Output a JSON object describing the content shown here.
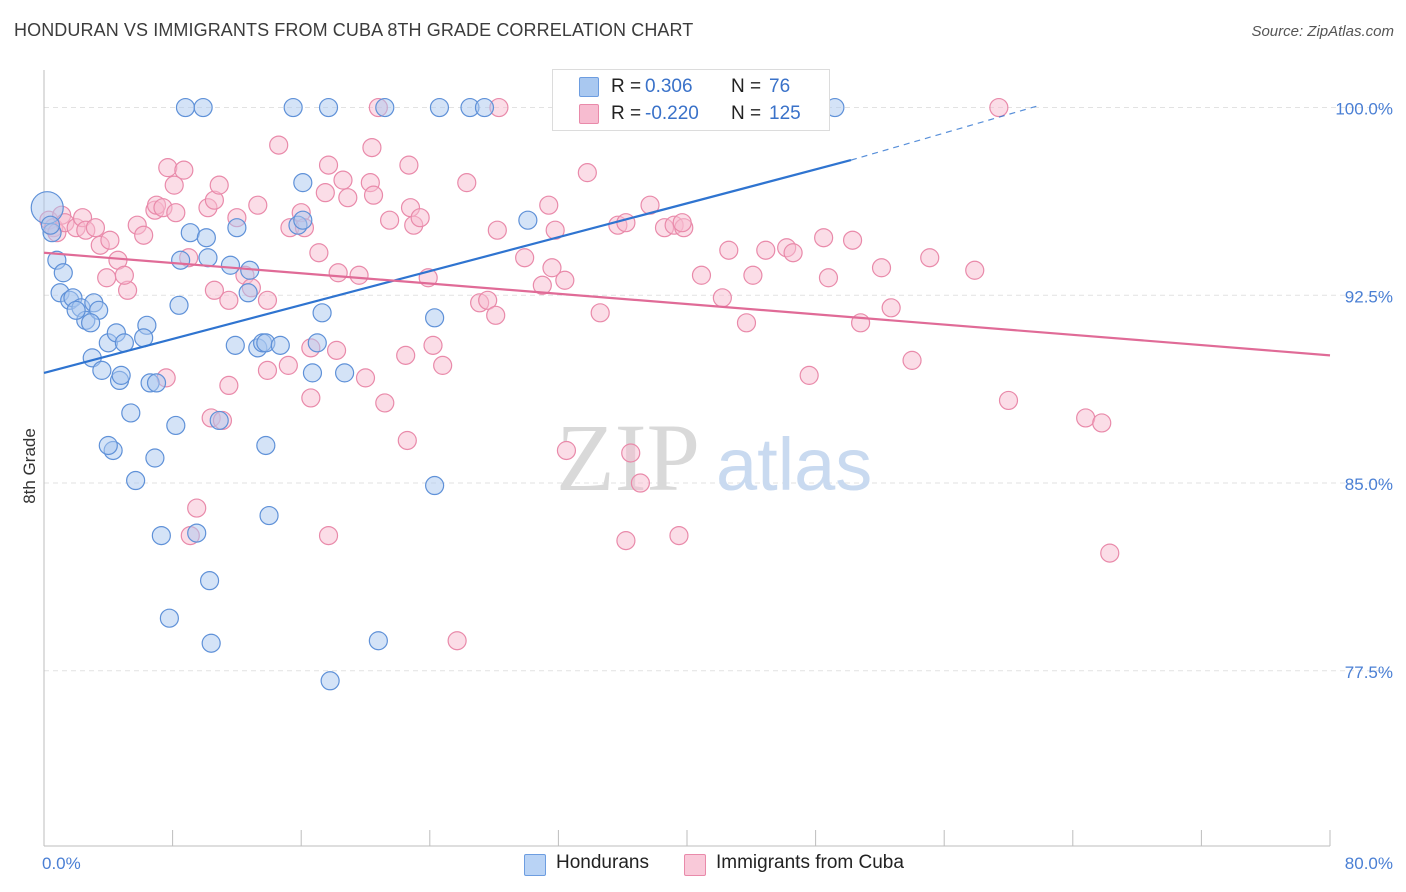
{
  "header": {
    "title": "HONDURAN VS IMMIGRANTS FROM CUBA 8TH GRADE CORRELATION CHART",
    "source": "Source: ZipAtlas.com"
  },
  "watermark": {
    "zip": "ZIP",
    "atlas": "atlas"
  },
  "legend": {
    "rows": [
      {
        "r_label": "R =",
        "r_value": "0.306",
        "n_label": "N =",
        "n_value": "76",
        "color": "#a9c8f0",
        "border": "#6d9de0"
      },
      {
        "r_label": "R =",
        "r_value": "-0.220",
        "n_label": "N =",
        "n_value": "125",
        "color": "#f7bcd0",
        "border": "#e98aaa"
      }
    ]
  },
  "bottom_legend": [
    {
      "label": "Hondurans",
      "color": "#b9d3f5",
      "border": "#6d9de0"
    },
    {
      "label": "Immigrants from Cuba",
      "color": "#f9c9d9",
      "border": "#e98aaa"
    }
  ],
  "colors": {
    "blue_fill": "#a9c8f0",
    "blue_stroke": "#5f91d8",
    "blue_line": "#2f74d0",
    "pink_fill": "#f7bcd0",
    "pink_stroke": "#e98aaa",
    "pink_line": "#e06b97",
    "grid": "#e2e2e2",
    "tick_text": "#4a7fd4"
  },
  "chart_data": {
    "type": "scatter",
    "title": "HONDURAN VS IMMIGRANTS FROM CUBA 8TH GRADE CORRELATION CHART",
    "xlabel": "",
    "ylabel": "8th Grade",
    "xlim": [
      0,
      80
    ],
    "ylim": [
      70.5,
      101.5
    ],
    "x_tick_labels": [
      "0.0%",
      "80.0%"
    ],
    "y_ticks": [
      77.5,
      85.0,
      92.5,
      100.0
    ],
    "y_tick_labels": [
      "77.5%",
      "85.0%",
      "92.5%",
      "100.0%"
    ],
    "grid": true,
    "legend_position": "top-center",
    "series": [
      {
        "name": "Hondurans",
        "R": 0.306,
        "N": 76,
        "trend": {
          "x": [
            0,
            50.2
          ],
          "y": [
            89.4,
            97.9
          ],
          "dashed_to": [
            62,
            100.1
          ]
        },
        "points": [
          [
            0.2,
            96.0
          ],
          [
            0.5,
            95.0
          ],
          [
            0.4,
            95.3
          ],
          [
            0.8,
            93.9
          ],
          [
            1.2,
            93.4
          ],
          [
            1.0,
            92.6
          ],
          [
            1.6,
            92.3
          ],
          [
            1.8,
            92.4
          ],
          [
            2.3,
            92.0
          ],
          [
            2.6,
            91.5
          ],
          [
            2.0,
            91.9
          ],
          [
            3.1,
            92.2
          ],
          [
            3.4,
            91.9
          ],
          [
            2.9,
            91.4
          ],
          [
            4.0,
            90.6
          ],
          [
            4.5,
            91.0
          ],
          [
            5.0,
            90.6
          ],
          [
            3.0,
            90.0
          ],
          [
            3.6,
            89.5
          ],
          [
            4.7,
            89.1
          ],
          [
            4.8,
            89.3
          ],
          [
            6.4,
            91.3
          ],
          [
            6.2,
            90.8
          ],
          [
            6.6,
            89.0
          ],
          [
            7.0,
            89.0
          ],
          [
            5.4,
            87.8
          ],
          [
            8.2,
            87.3
          ],
          [
            4.3,
            86.3
          ],
          [
            4.0,
            86.5
          ],
          [
            6.9,
            86.0
          ],
          [
            5.7,
            85.1
          ],
          [
            7.3,
            82.9
          ],
          [
            9.5,
            83.0
          ],
          [
            7.8,
            79.6
          ],
          [
            10.3,
            81.1
          ],
          [
            10.4,
            78.6
          ],
          [
            9.1,
            95.0
          ],
          [
            10.1,
            94.8
          ],
          [
            10.2,
            94.0
          ],
          [
            8.5,
            93.9
          ],
          [
            8.4,
            92.1
          ],
          [
            11.6,
            93.7
          ],
          [
            12.0,
            95.2
          ],
          [
            12.7,
            92.6
          ],
          [
            12.8,
            93.5
          ],
          [
            11.9,
            90.5
          ],
          [
            13.3,
            90.4
          ],
          [
            13.6,
            90.6
          ],
          [
            13.8,
            90.6
          ],
          [
            14.7,
            90.5
          ],
          [
            15.8,
            95.3
          ],
          [
            16.1,
            95.5
          ],
          [
            16.1,
            97.0
          ],
          [
            17.3,
            91.8
          ],
          [
            17.0,
            90.6
          ],
          [
            16.7,
            89.4
          ],
          [
            18.7,
            89.4
          ],
          [
            13.8,
            86.5
          ],
          [
            14.0,
            83.7
          ],
          [
            10.9,
            87.5
          ],
          [
            17.8,
            77.1
          ],
          [
            20.8,
            78.7
          ],
          [
            24.3,
            91.6
          ],
          [
            24.3,
            84.9
          ],
          [
            8.8,
            100.0
          ],
          [
            9.9,
            100.0
          ],
          [
            15.5,
            100.0
          ],
          [
            17.7,
            100.0
          ],
          [
            21.2,
            100.0
          ],
          [
            24.6,
            100.0
          ],
          [
            26.5,
            100.0
          ],
          [
            27.4,
            100.0
          ],
          [
            30.1,
            95.5
          ],
          [
            41.5,
            100.0
          ],
          [
            41.6,
            100.0
          ],
          [
            49.2,
            100.0
          ]
        ]
      },
      {
        "name": "Immigrants from Cuba",
        "R": -0.22,
        "N": 125,
        "trend": {
          "x": [
            0,
            80
          ],
          "y": [
            94.2,
            90.1
          ]
        },
        "points": [
          [
            0.3,
            95.5
          ],
          [
            0.6,
            95.2
          ],
          [
            0.8,
            95.0
          ],
          [
            1.1,
            95.7
          ],
          [
            1.3,
            95.4
          ],
          [
            2.0,
            95.2
          ],
          [
            2.4,
            95.6
          ],
          [
            2.6,
            95.1
          ],
          [
            3.2,
            95.2
          ],
          [
            3.5,
            94.5
          ],
          [
            4.1,
            94.7
          ],
          [
            4.6,
            93.9
          ],
          [
            3.9,
            93.2
          ],
          [
            5.2,
            92.7
          ],
          [
            5.0,
            93.3
          ],
          [
            5.8,
            95.3
          ],
          [
            6.2,
            94.9
          ],
          [
            6.9,
            95.9
          ],
          [
            7.0,
            96.1
          ],
          [
            7.4,
            96.0
          ],
          [
            8.2,
            95.8
          ],
          [
            7.7,
            97.6
          ],
          [
            8.1,
            96.9
          ],
          [
            8.7,
            97.5
          ],
          [
            9.0,
            94.0
          ],
          [
            10.2,
            96.0
          ],
          [
            10.6,
            96.3
          ],
          [
            10.9,
            96.9
          ],
          [
            12.0,
            95.6
          ],
          [
            13.3,
            96.1
          ],
          [
            12.5,
            93.3
          ],
          [
            11.5,
            92.3
          ],
          [
            10.6,
            92.7
          ],
          [
            13.9,
            92.3
          ],
          [
            12.9,
            92.8
          ],
          [
            14.6,
            98.5
          ],
          [
            15.3,
            95.2
          ],
          [
            16.0,
            95.8
          ],
          [
            16.2,
            95.2
          ],
          [
            17.5,
            96.6
          ],
          [
            17.7,
            97.7
          ],
          [
            18.6,
            97.1
          ],
          [
            18.9,
            96.4
          ],
          [
            19.6,
            93.3
          ],
          [
            18.3,
            93.4
          ],
          [
            17.1,
            94.2
          ],
          [
            20.3,
            97.0
          ],
          [
            20.5,
            96.5
          ],
          [
            20.4,
            98.4
          ],
          [
            21.5,
            95.5
          ],
          [
            22.7,
            97.7
          ],
          [
            22.8,
            96.0
          ],
          [
            23.0,
            95.3
          ],
          [
            23.4,
            95.6
          ],
          [
            23.9,
            93.2
          ],
          [
            24.2,
            90.5
          ],
          [
            24.8,
            89.7
          ],
          [
            26.3,
            97.0
          ],
          [
            27.1,
            92.2
          ],
          [
            27.6,
            92.3
          ],
          [
            28.1,
            91.7
          ],
          [
            28.2,
            95.1
          ],
          [
            29.9,
            94.0
          ],
          [
            31.0,
            92.9
          ],
          [
            31.4,
            96.1
          ],
          [
            31.8,
            95.1
          ],
          [
            31.6,
            93.6
          ],
          [
            32.4,
            93.1
          ],
          [
            33.8,
            97.4
          ],
          [
            34.6,
            91.8
          ],
          [
            35.7,
            95.3
          ],
          [
            36.2,
            95.4
          ],
          [
            37.7,
            96.1
          ],
          [
            38.6,
            95.2
          ],
          [
            39.2,
            95.3
          ],
          [
            39.8,
            95.2
          ],
          [
            39.7,
            95.4
          ],
          [
            40.9,
            93.3
          ],
          [
            42.2,
            92.4
          ],
          [
            42.6,
            94.3
          ],
          [
            43.7,
            91.4
          ],
          [
            44.9,
            94.3
          ],
          [
            44.1,
            93.3
          ],
          [
            46.2,
            94.4
          ],
          [
            46.6,
            94.2
          ],
          [
            47.6,
            89.3
          ],
          [
            48.5,
            94.8
          ],
          [
            48.8,
            93.2
          ],
          [
            50.3,
            94.7
          ],
          [
            50.8,
            91.4
          ],
          [
            52.1,
            93.6
          ],
          [
            52.7,
            92.0
          ],
          [
            54.0,
            89.9
          ],
          [
            55.1,
            94.0
          ],
          [
            57.9,
            93.5
          ],
          [
            60.0,
            88.3
          ],
          [
            64.8,
            87.6
          ],
          [
            65.8,
            87.4
          ],
          [
            66.3,
            82.2
          ],
          [
            9.5,
            84.0
          ],
          [
            9.1,
            82.9
          ],
          [
            10.4,
            87.6
          ],
          [
            11.1,
            87.5
          ],
          [
            7.6,
            89.2
          ],
          [
            11.5,
            88.9
          ],
          [
            13.9,
            89.5
          ],
          [
            15.2,
            89.7
          ],
          [
            16.6,
            90.4
          ],
          [
            16.6,
            88.4
          ],
          [
            18.2,
            90.3
          ],
          [
            20.0,
            89.2
          ],
          [
            21.2,
            88.2
          ],
          [
            22.6,
            86.7
          ],
          [
            22.5,
            90.1
          ],
          [
            17.7,
            82.9
          ],
          [
            25.7,
            78.7
          ],
          [
            32.5,
            86.3
          ],
          [
            36.5,
            86.2
          ],
          [
            36.2,
            82.7
          ],
          [
            37.1,
            85.0
          ],
          [
            39.5,
            82.9
          ],
          [
            20.8,
            100.0
          ],
          [
            28.3,
            100.0
          ],
          [
            41.4,
            100.0
          ],
          [
            59.4,
            100.0
          ]
        ]
      }
    ]
  }
}
